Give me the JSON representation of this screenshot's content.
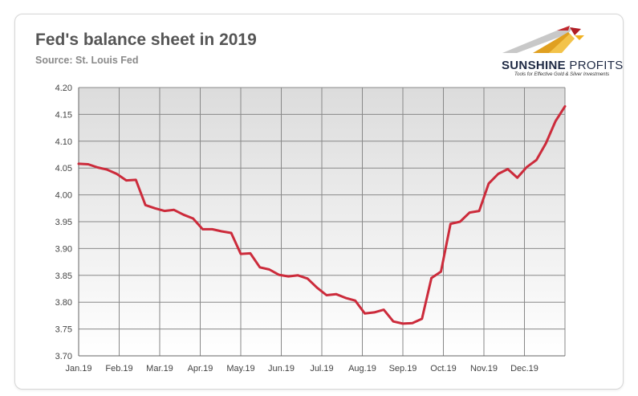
{
  "title": "Fed's balance sheet in 2019",
  "subtitle": "Source: St. Louis Fed",
  "logo": {
    "name_bold": "SUNSHINE",
    "name_light": "PROFITS",
    "tagline": "Tools for Effective Gold & Silver Investments"
  },
  "colors": {
    "line": "#cc2b3b",
    "grid": "#888888",
    "plot_gradient_top": "#dcdcdc",
    "plot_gradient_bottom": "#ffffff"
  },
  "chart_data": {
    "type": "line",
    "title": "Fed's balance sheet in 2019",
    "xlabel": "",
    "ylabel": "",
    "ylim": [
      3.7,
      4.2
    ],
    "y_ticks": [
      "3.70",
      "3.75",
      "3.80",
      "3.85",
      "3.90",
      "3.95",
      "4.00",
      "4.05",
      "4.10",
      "4.15",
      "4.20"
    ],
    "x_ticks": [
      "Jan.19",
      "Feb.19",
      "Mar.19",
      "Apr.19",
      "May.19",
      "Jun.19",
      "Jul.19",
      "Aug.19",
      "Sep.19",
      "Oct.19",
      "Nov.19",
      "Dec.19"
    ],
    "grid": "vertical and horizontal",
    "series": [
      {
        "values": [
          4.058,
          4.057,
          4.051,
          4.047,
          4.039,
          4.027,
          4.028,
          3.981,
          3.975,
          3.97,
          3.972,
          3.963,
          3.956,
          3.936,
          3.936,
          3.932,
          3.929,
          3.89,
          3.891,
          3.865,
          3.861,
          3.851,
          3.848,
          3.85,
          3.844,
          3.827,
          3.813,
          3.815,
          3.808,
          3.803,
          3.779,
          3.781,
          3.786,
          3.764,
          3.76,
          3.761,
          3.769,
          3.845,
          3.857,
          3.946,
          3.95,
          3.967,
          3.97,
          4.021,
          4.039,
          4.048,
          4.032,
          4.052,
          4.065,
          4.096,
          4.137,
          4.165
        ]
      }
    ]
  }
}
